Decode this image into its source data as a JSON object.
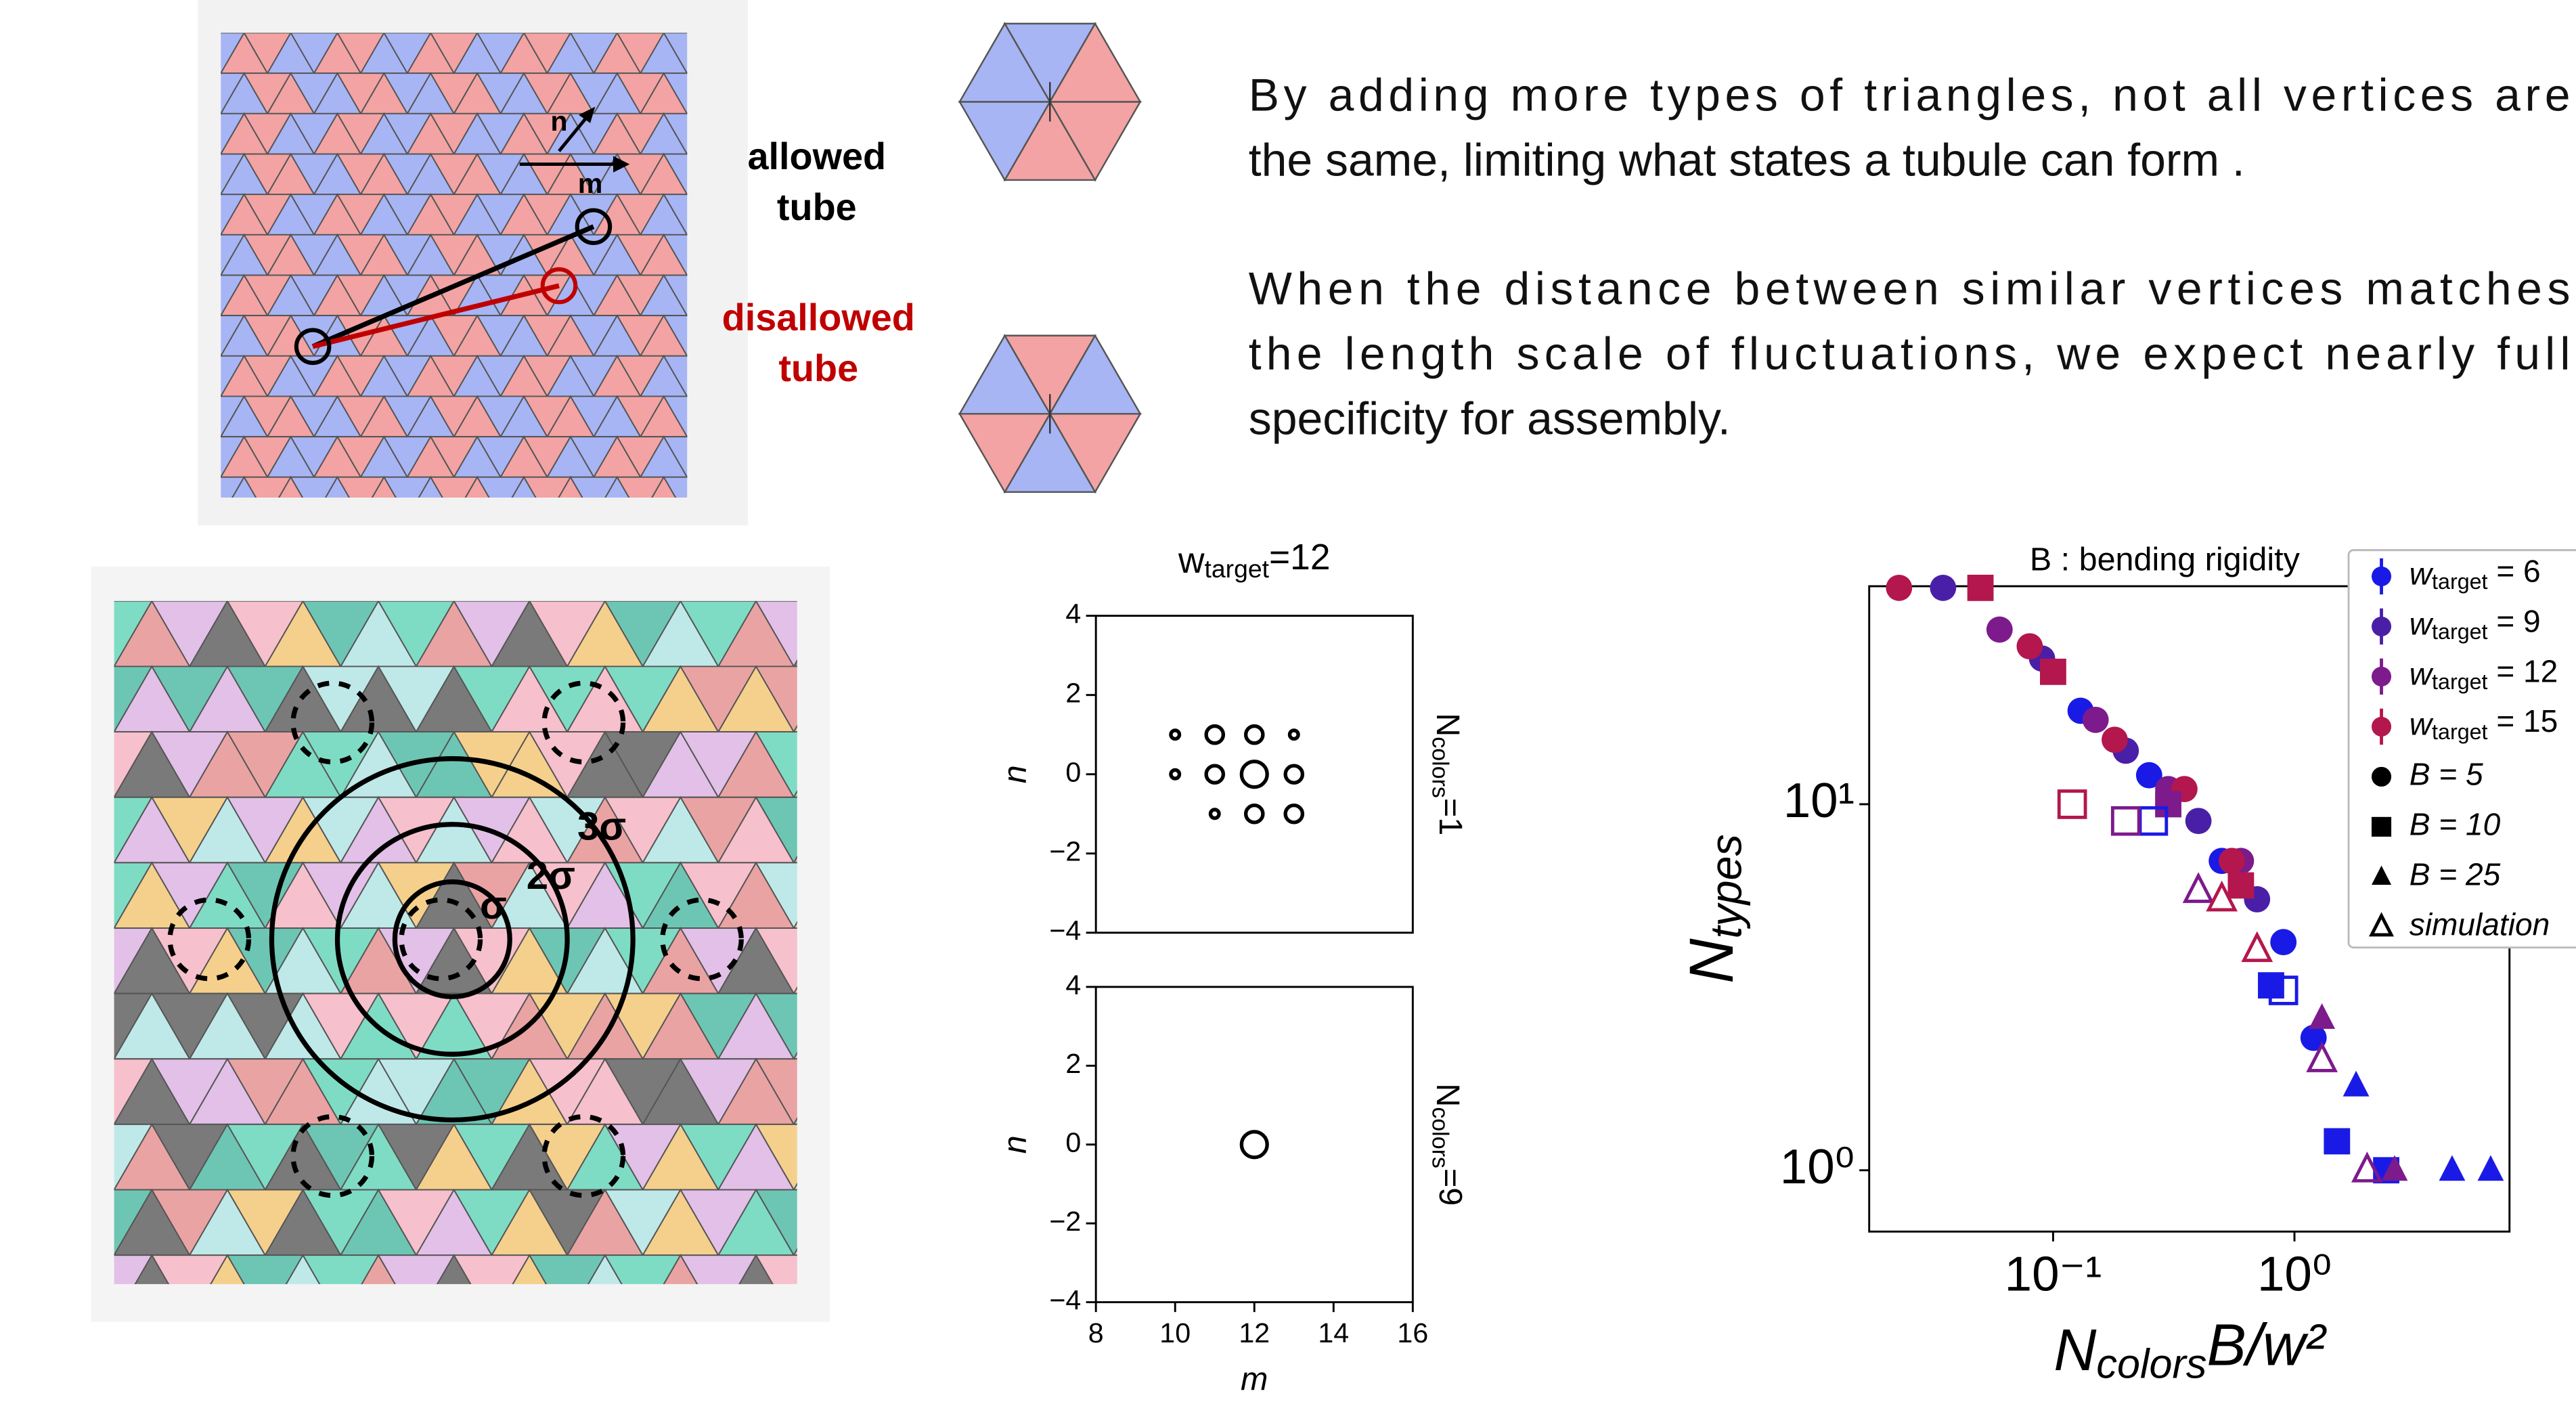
{
  "lattice_labels": {
    "n": "n",
    "m": "m",
    "allowed": [
      "allowed",
      "tube"
    ],
    "disallowed": [
      "disallowed",
      "tube"
    ],
    "sigma": "σ",
    "sigma2": "2σ",
    "sigma3": "3σ"
  },
  "paragraphs": [
    [
      "By adding more types of triangles, not all vertices are",
      "the same, limiting what states a tubule can form ."
    ],
    [
      "When the distance between similar vertices matches",
      "the length scale of fluctuations, we expect nearly full",
      "specificity for assembly."
    ]
  ],
  "chart_data": [
    {
      "type": "scatter",
      "title": {
        "base": "w",
        "sub": "target",
        "rest": "=12"
      },
      "side_label": {
        "base": "N",
        "sub": "colors",
        "rest": "=1"
      },
      "ylabel": "n",
      "x": [
        10,
        11,
        12,
        13,
        10,
        11,
        12,
        13,
        11,
        12,
        13
      ],
      "values": [
        1,
        1,
        1,
        1,
        0,
        0,
        0,
        0,
        -1,
        -1,
        -1
      ],
      "sizes": [
        1,
        2,
        2,
        1,
        1,
        2,
        3,
        2,
        1,
        2,
        2
      ],
      "xlim": [
        8,
        16
      ],
      "ylim": [
        -4,
        4
      ],
      "yticks": [
        {
          "value": -4,
          "label": "−4"
        },
        {
          "value": -2,
          "label": "−2"
        },
        0,
        2,
        4
      ]
    },
    {
      "type": "scatter",
      "side_label": {
        "base": "N",
        "sub": "colors",
        "rest": "=9"
      },
      "ylabel": "n",
      "xlabel": "m",
      "x": [
        12
      ],
      "values": [
        0
      ],
      "sizes": [
        3
      ],
      "xlim": [
        8,
        16
      ],
      "ylim": [
        -4,
        4
      ],
      "xticks": [
        8,
        10,
        12,
        14,
        16
      ],
      "yticks": [
        {
          "value": -4,
          "label": "−4"
        },
        {
          "value": -2,
          "label": "−2"
        },
        0,
        2,
        4
      ]
    },
    {
      "type": "scatter",
      "log_scale": true,
      "annotation": "B : bending rigidity",
      "xlabel": {
        "base": "N",
        "sub": "colors",
        "rest": "B/w²"
      },
      "ylabel": {
        "base": "N",
        "sub": "types"
      },
      "xlim": [
        0.0173,
        7.78
      ],
      "ylim": [
        0.68,
        39.4
      ],
      "xticks": [
        {
          "value": 0.1,
          "label": "10⁻¹"
        },
        {
          "value": 1,
          "label": "10⁰"
        }
      ],
      "yticks": [
        {
          "value": 1,
          "label": "10⁰"
        },
        {
          "value": 10,
          "label": "10¹"
        }
      ],
      "legend": [
        {
          "label": {
            "base": "w",
            "sub": "target",
            "rest": " = 6"
          },
          "color": "#1a1ae6",
          "marker": "dot"
        },
        {
          "label": {
            "base": "w",
            "sub": "target",
            "rest": " = 9"
          },
          "color": "#4a1fa8",
          "marker": "dot"
        },
        {
          "label": {
            "base": "w",
            "sub": "target",
            "rest": " = 12"
          },
          "color": "#7d1a8c",
          "marker": "dot"
        },
        {
          "label": {
            "base": "w",
            "sub": "target",
            "rest": " = 15"
          },
          "color": "#b3174d",
          "marker": "dot"
        },
        {
          "label": {
            "base": "B = 5"
          },
          "color": "#000000",
          "marker": "circle"
        },
        {
          "label": {
            "base": "B = 10"
          },
          "color": "#000000",
          "marker": "square"
        },
        {
          "label": {
            "base": "B = 25"
          },
          "color": "#000000",
          "marker": "triangle"
        },
        {
          "label": {
            "base": "simulation"
          },
          "color": "#000000",
          "marker": "open-triangle"
        }
      ],
      "series": [
        {
          "color": "#1a1ae6",
          "marker": "circle",
          "x": [
            0.13,
            0.25,
            0.5,
            0.9,
            1.2
          ],
          "values": [
            18,
            12,
            7,
            4.2,
            2.3
          ]
        },
        {
          "color": "#4a1fa8",
          "marker": "circle",
          "x": [
            0.035,
            0.09,
            0.2,
            0.4,
            0.7
          ],
          "values": [
            39,
            25,
            14,
            9,
            5.5
          ]
        },
        {
          "color": "#7d1a8c",
          "marker": "circle",
          "x": [
            0.06,
            0.15,
            0.3,
            0.6
          ],
          "values": [
            30,
            17,
            11,
            7
          ]
        },
        {
          "color": "#b3174d",
          "marker": "circle",
          "x": [
            0.023,
            0.08,
            0.18,
            0.35,
            0.55
          ],
          "values": [
            39,
            27,
            15,
            11,
            7
          ]
        },
        {
          "color": "#b3174d",
          "marker": "square",
          "x": [
            0.05,
            0.1,
            0.6
          ],
          "values": [
            39,
            23,
            6
          ]
        },
        {
          "color": "#1a1ae6",
          "marker": "square",
          "x": [
            0.8,
            1.5,
            2.4
          ],
          "values": [
            3.2,
            1.2,
            1
          ]
        },
        {
          "color": "#7d1a8c",
          "marker": "square",
          "x": [
            0.3
          ],
          "values": [
            10
          ]
        },
        {
          "color": "#1a1ae6",
          "marker": "triangle",
          "x": [
            1.8,
            4.5,
            6.5
          ],
          "values": [
            1.7,
            1,
            1
          ]
        },
        {
          "color": "#7d1a8c",
          "marker": "triangle",
          "x": [
            1.3,
            2.6
          ],
          "values": [
            2.6,
            1
          ]
        },
        {
          "color": "#1a1ae6",
          "marker": "open-square",
          "x": [
            0.9,
            0.26
          ],
          "values": [
            3.1,
            9
          ]
        },
        {
          "color": "#7d1a8c",
          "marker": "open-square",
          "x": [
            0.2
          ],
          "values": [
            9
          ]
        },
        {
          "color": "#b3174d",
          "marker": "open-square",
          "x": [
            0.12
          ],
          "values": [
            10
          ]
        },
        {
          "color": "#7d1a8c",
          "marker": "open-triangle",
          "x": [
            0.4,
            1.3,
            2
          ],
          "values": [
            5.8,
            2,
            1
          ]
        },
        {
          "color": "#b3174d",
          "marker": "open-triangle",
          "x": [
            0.7,
            0.5
          ],
          "values": [
            4,
            5.5
          ]
        }
      ]
    }
  ]
}
